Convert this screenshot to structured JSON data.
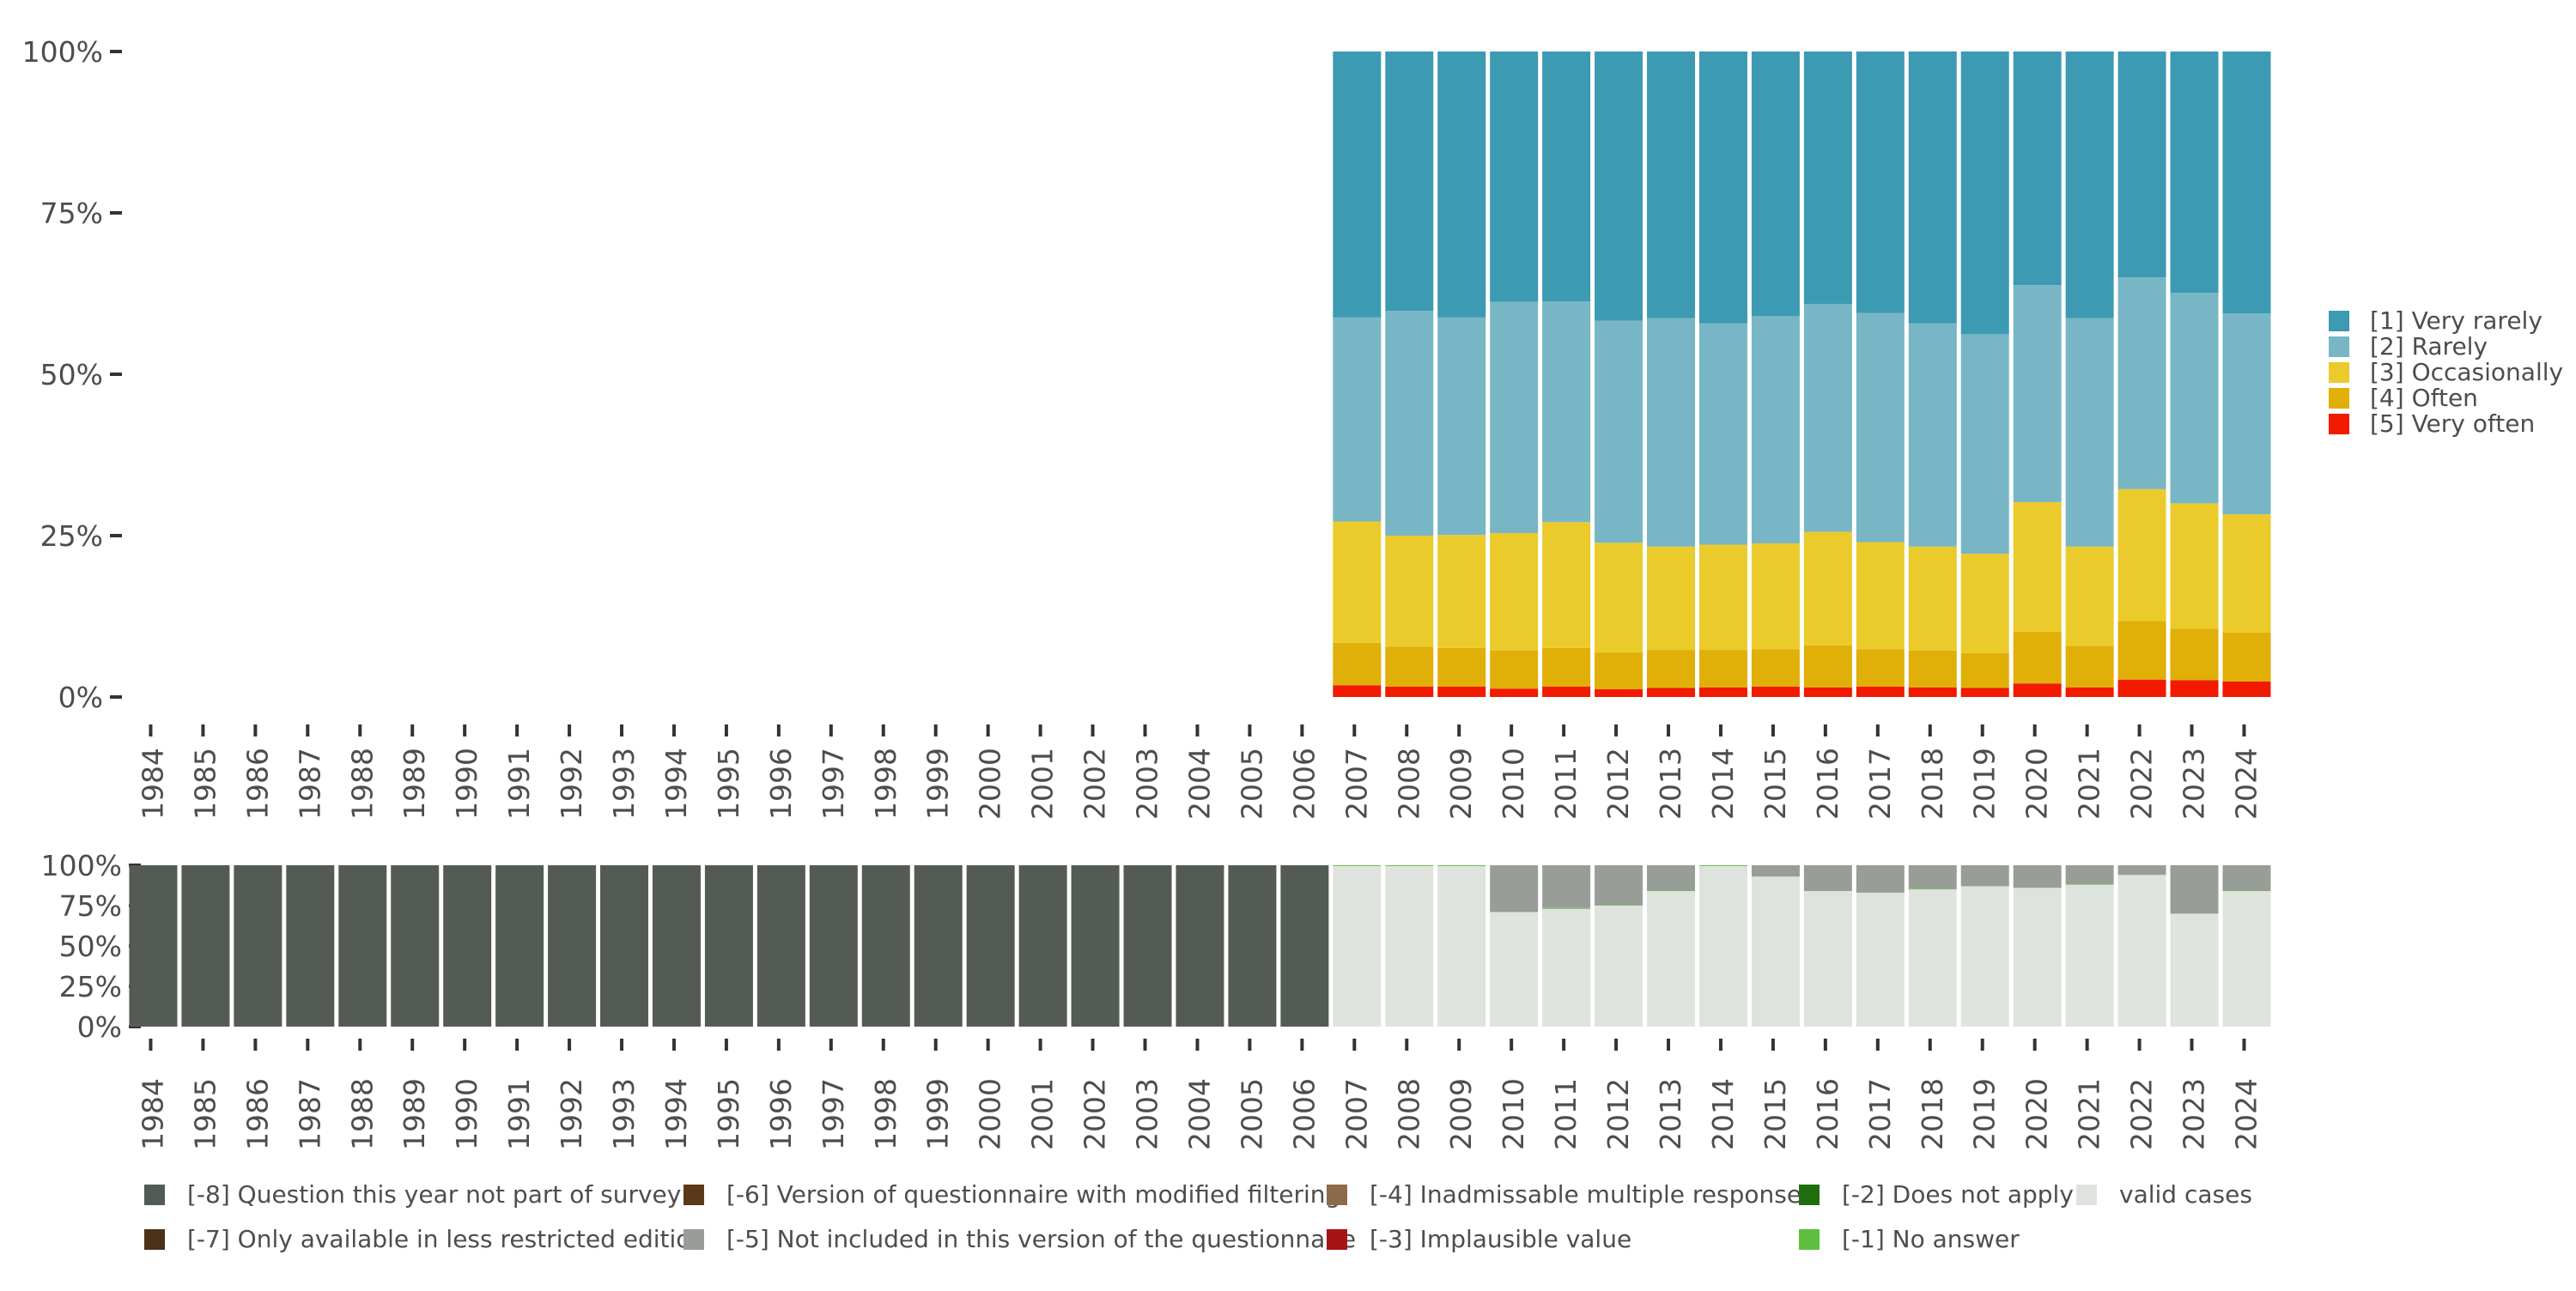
{
  "colors": {
    "very_rarely": "#3d9ab3",
    "rarely": "#78b6c6",
    "occasionally": "#eacb2b",
    "often": "#e0af08",
    "very_often": "#f21a00",
    "m8": "#545b55",
    "m7": "#4a3118",
    "m6": "#5c3a19",
    "m5": "#989e97",
    "m4": "#8d6a4a",
    "m3": "#a61414",
    "m2": "#1f6d0f",
    "m1": "#5fbf3f",
    "valid": "#dfe3de"
  },
  "chart_data": [
    {
      "type": "bar",
      "stacked": true,
      "title": "",
      "xlabel": "",
      "ylabel": "",
      "ylim": [
        0,
        100
      ],
      "yticks": [
        "0%",
        "25%",
        "50%",
        "75%",
        "100%"
      ],
      "categories": [
        "1984",
        "1985",
        "1986",
        "1987",
        "1988",
        "1989",
        "1990",
        "1991",
        "1992",
        "1993",
        "1994",
        "1995",
        "1996",
        "1997",
        "1998",
        "1999",
        "2000",
        "2001",
        "2002",
        "2003",
        "2004",
        "2005",
        "2006",
        "2007",
        "2008",
        "2009",
        "2010",
        "2011",
        "2012",
        "2013",
        "2014",
        "2015",
        "2016",
        "2017",
        "2018",
        "2019",
        "2020",
        "2021",
        "2022",
        "2023",
        "2024"
      ],
      "series": [
        {
          "name": "[5] Very often",
          "color_key": "very_often",
          "values": [
            null,
            null,
            null,
            null,
            null,
            null,
            null,
            null,
            null,
            null,
            null,
            null,
            null,
            null,
            null,
            null,
            null,
            null,
            null,
            null,
            null,
            null,
            null,
            1.8,
            1.6,
            1.6,
            1.3,
            1.6,
            1.2,
            1.4,
            1.5,
            1.6,
            1.5,
            1.6,
            1.5,
            1.4,
            2.1,
            1.5,
            2.7,
            2.6,
            2.4
          ]
        },
        {
          "name": "[4] Often",
          "color_key": "often",
          "values": [
            null,
            null,
            null,
            null,
            null,
            null,
            null,
            null,
            null,
            null,
            null,
            null,
            null,
            null,
            null,
            null,
            null,
            null,
            null,
            null,
            null,
            null,
            null,
            6.6,
            6.2,
            6.0,
            5.9,
            6.0,
            5.7,
            5.9,
            5.8,
            5.8,
            6.5,
            5.8,
            5.7,
            5.4,
            8.0,
            6.4,
            9.1,
            8.0,
            7.6
          ]
        },
        {
          "name": "[3] Occasionally",
          "color_key": "occasionally",
          "values": [
            null,
            null,
            null,
            null,
            null,
            null,
            null,
            null,
            null,
            null,
            null,
            null,
            null,
            null,
            null,
            null,
            null,
            null,
            null,
            null,
            null,
            null,
            null,
            18.8,
            17.2,
            17.5,
            18.2,
            19.5,
            17.0,
            16.0,
            16.3,
            16.4,
            17.6,
            16.6,
            16.1,
            15.4,
            20.1,
            15.4,
            20.4,
            19.4,
            18.3
          ]
        },
        {
          "name": "[2] Rarely",
          "color_key": "rarely",
          "values": [
            null,
            null,
            null,
            null,
            null,
            null,
            null,
            null,
            null,
            null,
            null,
            null,
            null,
            null,
            null,
            null,
            null,
            null,
            null,
            null,
            null,
            null,
            null,
            31.6,
            34.8,
            33.7,
            35.8,
            34.2,
            34.4,
            35.4,
            34.3,
            35.2,
            35.3,
            35.5,
            34.6,
            34.0,
            33.6,
            35.4,
            32.8,
            32.6,
            31.1
          ]
        },
        {
          "name": "[1] Very rarely",
          "color_key": "very_rarely",
          "values": [
            null,
            null,
            null,
            null,
            null,
            null,
            null,
            null,
            null,
            null,
            null,
            null,
            null,
            null,
            null,
            null,
            null,
            null,
            null,
            null,
            null,
            null,
            null,
            41.2,
            40.2,
            41.2,
            38.8,
            38.7,
            41.7,
            41.3,
            42.1,
            41.0,
            39.1,
            40.5,
            42.1,
            43.8,
            36.2,
            41.3,
            35.0,
            37.4,
            40.6
          ]
        }
      ]
    },
    {
      "type": "bar",
      "stacked": true,
      "title": "",
      "xlabel": "",
      "ylabel": "",
      "ylim": [
        0,
        100
      ],
      "yticks": [
        "0%",
        "25%",
        "50%",
        "75%",
        "100%"
      ],
      "categories": [
        "1984",
        "1985",
        "1986",
        "1987",
        "1988",
        "1989",
        "1990",
        "1991",
        "1992",
        "1993",
        "1994",
        "1995",
        "1996",
        "1997",
        "1998",
        "1999",
        "2000",
        "2001",
        "2002",
        "2003",
        "2004",
        "2005",
        "2006",
        "2007",
        "2008",
        "2009",
        "2010",
        "2011",
        "2012",
        "2013",
        "2014",
        "2015",
        "2016",
        "2017",
        "2018",
        "2019",
        "2020",
        "2021",
        "2022",
        "2023",
        "2024"
      ],
      "series": [
        {
          "name": "valid cases",
          "color_key": "valid",
          "values": [
            0,
            0,
            0,
            0,
            0,
            0,
            0,
            0,
            0,
            0,
            0,
            0,
            0,
            0,
            0,
            0,
            0,
            0,
            0,
            0,
            0,
            0,
            0,
            99.5,
            99.5,
            99.5,
            71,
            73,
            75,
            84,
            99.5,
            93,
            84,
            83,
            85,
            87,
            86,
            88,
            94,
            70,
            84
          ]
        },
        {
          "name": "[-1] No answer",
          "color_key": "m1",
          "values": [
            0,
            0,
            0,
            0,
            0,
            0,
            0,
            0,
            0,
            0,
            0,
            0,
            0,
            0,
            0,
            0,
            0,
            0,
            0,
            0,
            0,
            0,
            0,
            0.5,
            0.5,
            0.5,
            0,
            0.5,
            0.3,
            0.3,
            0.5,
            0,
            0,
            0,
            0.5,
            0,
            0,
            0.3,
            0,
            0,
            0.3
          ]
        },
        {
          "name": "[-5] Not included in this version of the questionnaire",
          "color_key": "m5",
          "values": [
            0,
            0,
            0,
            0,
            0,
            0,
            0,
            0,
            0,
            0,
            0,
            0,
            0,
            0,
            0,
            0,
            0,
            0,
            0,
            0,
            0,
            0,
            0,
            0,
            0,
            0,
            29,
            26.5,
            24.7,
            15.7,
            0,
            7,
            16,
            17,
            14.5,
            13,
            14,
            11.7,
            6,
            30,
            15.7
          ]
        },
        {
          "name": "[-8] Question this year not part of survey",
          "color_key": "m8",
          "values": [
            100,
            100,
            100,
            100,
            100,
            100,
            100,
            100,
            100,
            100,
            100,
            100,
            100,
            100,
            100,
            100,
            100,
            100,
            100,
            100,
            100,
            100,
            100,
            0,
            0,
            0,
            0,
            0,
            0,
            0,
            0,
            0,
            0,
            0,
            0,
            0,
            0,
            0,
            0,
            0,
            0
          ]
        }
      ]
    }
  ],
  "legend_top": [
    {
      "label": "[1] Very rarely",
      "color_key": "very_rarely"
    },
    {
      "label": "[2] Rarely",
      "color_key": "rarely"
    },
    {
      "label": "[3] Occasionally",
      "color_key": "occasionally"
    },
    {
      "label": "[4] Often",
      "color_key": "often"
    },
    {
      "label": "[5] Very often",
      "color_key": "very_often"
    }
  ],
  "legend_bottom": [
    {
      "label": "[-8] Question this year not part of survey",
      "color_key": "m8"
    },
    {
      "label": "[-7] Only available in less restricted edition",
      "color_key": "m7"
    },
    {
      "label": "[-6] Version of questionnaire with modified filtering",
      "color_key": "m6"
    },
    {
      "label": "[-5] Not included in this version of the questionnaire",
      "color_key": "m5"
    },
    {
      "label": "[-4] Inadmissable multiple response",
      "color_key": "m4"
    },
    {
      "label": "[-3] Implausible value",
      "color_key": "m3"
    },
    {
      "label": "[-2] Does not apply",
      "color_key": "m2"
    },
    {
      "label": "[-1] No answer",
      "color_key": "m1"
    },
    {
      "label": "valid cases",
      "color_key": "valid"
    }
  ]
}
